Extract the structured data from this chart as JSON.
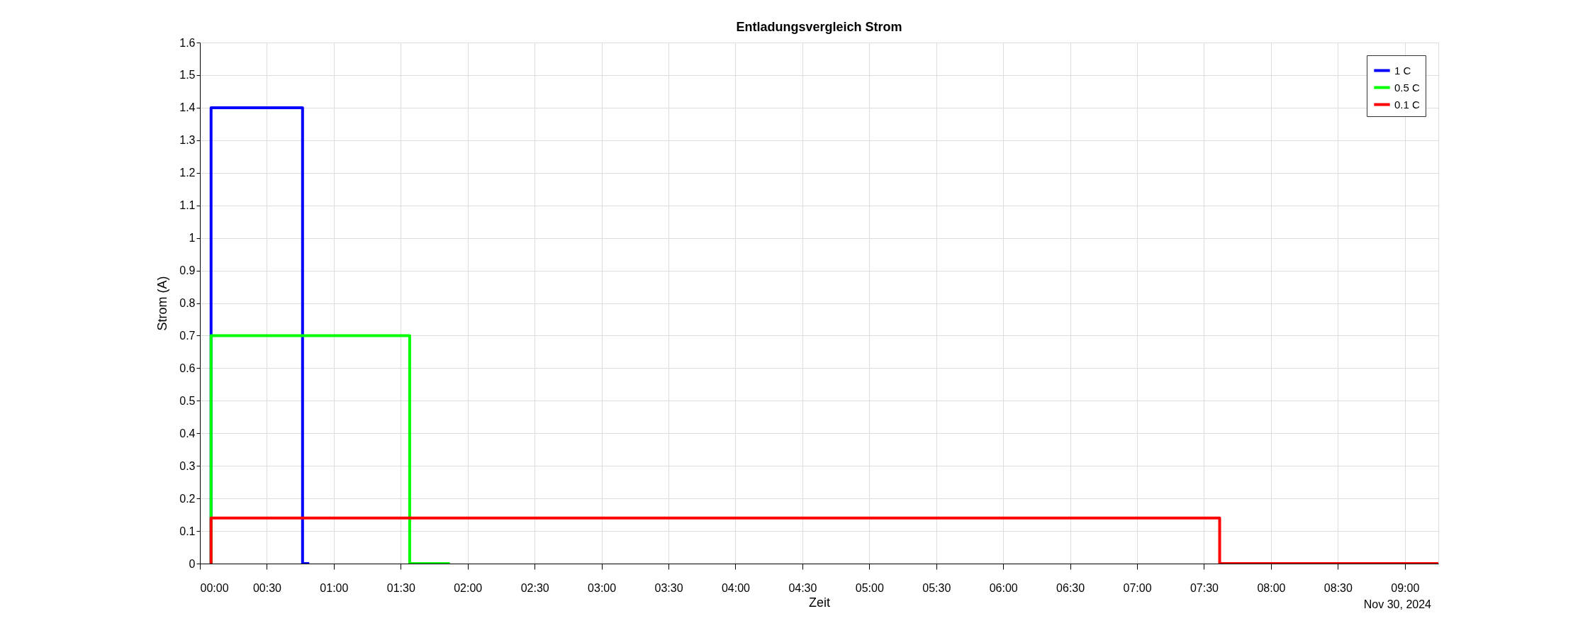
{
  "chart_data": {
    "type": "line",
    "title": "Entladungsvergleich Strom",
    "xlabel": "Zeit",
    "ylabel": "Strom (A)",
    "annotations": [
      "Nov 30, 2024"
    ],
    "series": [
      {
        "name": "1 C",
        "color": "#0000ff",
        "x": [
          "2024-11-30T00:05",
          "2024-11-30T00:05",
          "2024-11-30T00:46",
          "2024-11-30T00:46",
          "2024-11-30T00:49"
        ],
        "values": [
          0,
          1.4,
          1.4,
          0,
          0
        ]
      },
      {
        "name": "0.5 C",
        "color": "#00ff00",
        "x": [
          "2024-11-30T00:05",
          "2024-11-30T00:05",
          "2024-11-30T01:34",
          "2024-11-30T01:34",
          "2024-11-30T01:52"
        ],
        "values": [
          0,
          0.7,
          0.7,
          0,
          0
        ]
      },
      {
        "name": "0.1 C",
        "color": "#ff0000",
        "x": [
          "2024-11-30T00:05",
          "2024-11-30T00:05",
          "2024-11-30T07:37",
          "2024-11-30T07:37",
          "2024-11-30T09:15"
        ],
        "values": [
          0,
          0.14,
          0.14,
          0,
          0
        ]
      }
    ],
    "xlim": [
      "2024-11-30T00:00",
      "2024-11-30T09:15"
    ],
    "xticks": [
      {
        "value": "2024-11-30T00:00",
        "label": "00:00"
      },
      {
        "value": "2024-11-30T00:30",
        "label": "00:30"
      },
      {
        "value": "2024-11-30T01:00",
        "label": "01:00"
      },
      {
        "value": "2024-11-30T01:30",
        "label": "01:30"
      },
      {
        "value": "2024-11-30T02:00",
        "label": "02:00"
      },
      {
        "value": "2024-11-30T02:30",
        "label": "02:30"
      },
      {
        "value": "2024-11-30T03:00",
        "label": "03:00"
      },
      {
        "value": "2024-11-30T03:30",
        "label": "03:30"
      },
      {
        "value": "2024-11-30T04:00",
        "label": "04:00"
      },
      {
        "value": "2024-11-30T04:30",
        "label": "04:30"
      },
      {
        "value": "2024-11-30T05:00",
        "label": "05:00"
      },
      {
        "value": "2024-11-30T05:30",
        "label": "05:30"
      },
      {
        "value": "2024-11-30T06:00",
        "label": "06:00"
      },
      {
        "value": "2024-11-30T06:30",
        "label": "06:30"
      },
      {
        "value": "2024-11-30T07:00",
        "label": "07:00"
      },
      {
        "value": "2024-11-30T07:30",
        "label": "07:30"
      },
      {
        "value": "2024-11-30T08:00",
        "label": "08:00"
      },
      {
        "value": "2024-11-30T08:30",
        "label": "08:30"
      },
      {
        "value": "2024-11-30T09:00",
        "label": "09:00"
      }
    ],
    "ylim": [
      0,
      1.6
    ],
    "yticks": [
      0,
      0.1,
      0.2,
      0.3,
      0.4,
      0.5,
      0.6,
      0.7,
      0.8,
      0.9,
      1,
      1.1,
      1.2,
      1.3,
      1.4,
      1.5,
      1.6
    ],
    "grid": true,
    "legend": "top right",
    "marker": "none",
    "line_style": "solid"
  }
}
